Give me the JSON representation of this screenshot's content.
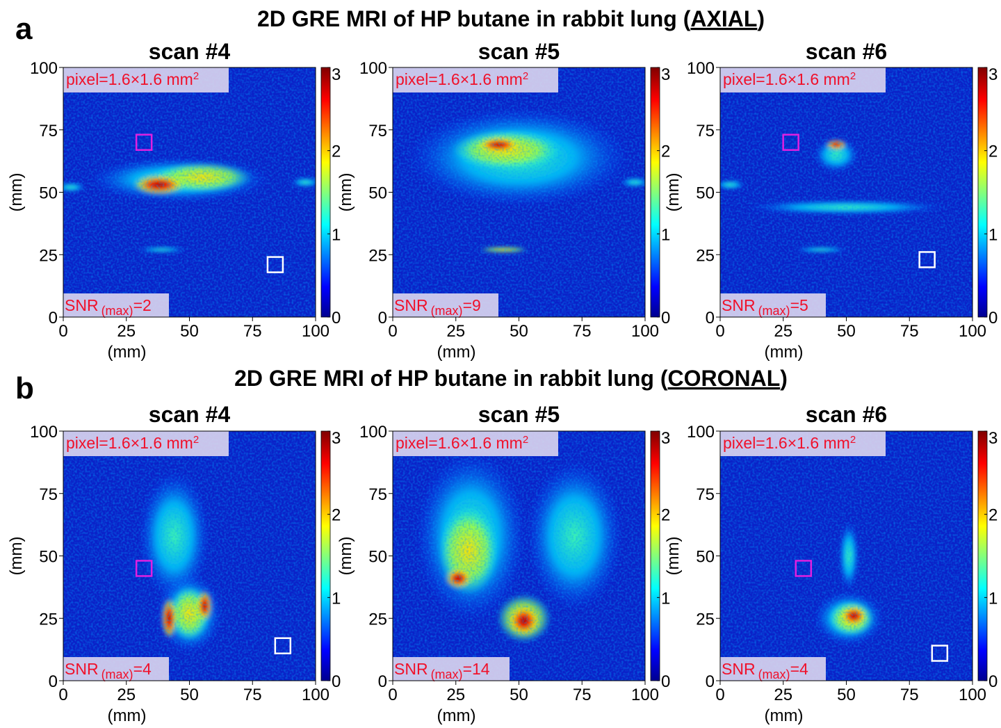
{
  "figure": {
    "rows": [
      {
        "letter": "a",
        "title": "2D GRE MRI of HP butane in rabbit lung (",
        "title_emph": "AXIAL",
        "title_end": ")",
        "scans": [
          {
            "title": "scan #4",
            "pixel": "pixel=1.6×1.6 mm",
            "pixel_sup": "2",
            "snr": "SNR",
            "snr_sub": "(max)",
            "snr_value": "=2"
          },
          {
            "title": "scan #5",
            "pixel": "pixel=1.6×1.6 mm",
            "pixel_sup": "2",
            "snr": "SNR",
            "snr_sub": "(max)",
            "snr_value": "=9"
          },
          {
            "title": "scan #6",
            "pixel": "pixel=1.6×1.6 mm",
            "pixel_sup": "2",
            "snr": "SNR",
            "snr_sub": "(max)",
            "snr_value": "=5"
          }
        ]
      },
      {
        "letter": "b",
        "title": "2D GRE MRI of HP butane in rabbit lung (",
        "title_emph": "CORONAL",
        "title_end": ")",
        "scans": [
          {
            "title": "scan #4",
            "pixel": "pixel=1.6×1.6 mm",
            "pixel_sup": "2",
            "snr": "SNR",
            "snr_sub": "(max)",
            "snr_value": "=4"
          },
          {
            "title": "scan #5",
            "pixel": "pixel=1.6×1.6 mm",
            "pixel_sup": "2",
            "snr": "SNR",
            "snr_sub": "(max)",
            "snr_value": "=14"
          },
          {
            "title": "scan #6",
            "pixel": "pixel=1.6×1.6 mm",
            "pixel_sup": "2",
            "snr": "SNR",
            "snr_sub": "(max)",
            "snr_value": "=4"
          }
        ]
      }
    ],
    "axis_label": "(mm)",
    "xlim": [
      0,
      100
    ],
    "ylim": [
      0,
      100
    ],
    "xticks": [
      0,
      25,
      50,
      75,
      100
    ],
    "yticks": [
      0,
      25,
      50,
      75,
      100
    ],
    "colorbar": {
      "lim": [
        0,
        3
      ],
      "ticks": [
        0,
        1,
        2,
        3
      ]
    }
  }
}
